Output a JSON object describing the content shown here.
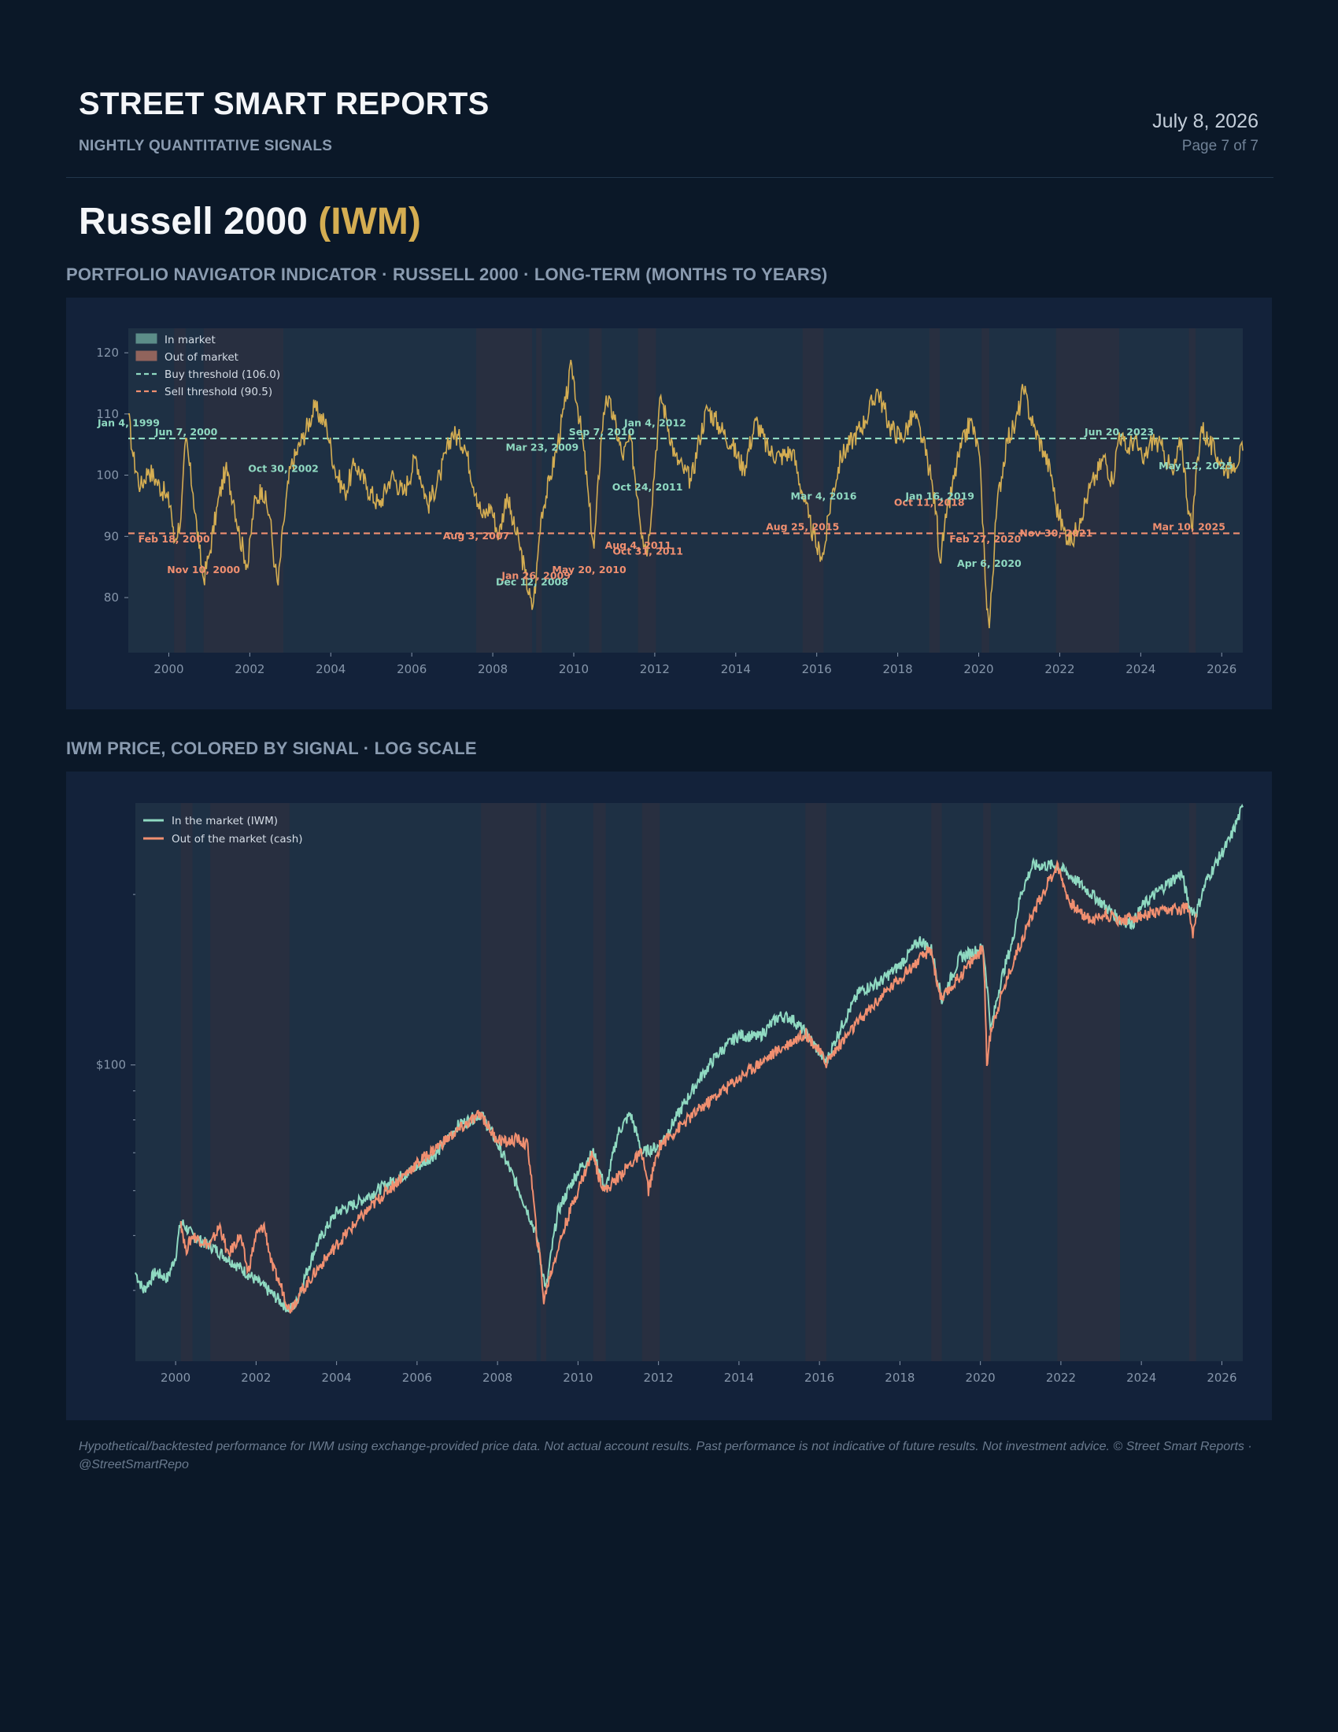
{
  "header": {
    "brand": "STREET SMART REPORTS",
    "tagline": "NIGHTLY QUANTITATIVE SIGNALS",
    "date": "July 8, 2026",
    "page": "Page 7 of 7"
  },
  "title": {
    "name": "Russell 2000 ",
    "ticker": "(IWM)"
  },
  "sections": {
    "indicator": "PORTFOLIO NAVIGATOR INDICATOR · RUSSELL 2000 · LONG-TERM (MONTHS TO YEARS)",
    "price": "IWM PRICE, COLORED BY SIGNAL · LOG SCALE"
  },
  "colors": {
    "in_market": "#8fd9c1",
    "out_market": "#f08f70",
    "indicator_line": "#d4ad52",
    "buy_threshold": "#8fd9c1",
    "sell_threshold": "#f08f70",
    "background": "#0b1828",
    "panel": "#13223a",
    "plot": "#1e3044"
  },
  "chart_data": [
    {
      "type": "line",
      "title": "",
      "xlabel": "",
      "ylabel": "",
      "xlim": [
        1999.0,
        2026.52
      ],
      "ylim": [
        71,
        124
      ],
      "x_ticks": [
        2000,
        2002,
        2004,
        2006,
        2008,
        2010,
        2012,
        2014,
        2016,
        2018,
        2020,
        2022,
        2024,
        2026
      ],
      "y_ticks": [
        80,
        90,
        100,
        110,
        120
      ],
      "legend_position": "top-left",
      "legend": [
        "In market",
        "Out of market",
        "Buy threshold (106.0)",
        "Sell threshold (90.5)"
      ],
      "buy_threshold": 106.0,
      "sell_threshold": 90.5,
      "out_of_market_periods": [
        [
          2000.13,
          2000.42
        ],
        [
          2000.86,
          2002.83
        ],
        [
          2007.59,
          2008.97
        ],
        [
          2009.07,
          2009.21
        ],
        [
          2010.38,
          2010.69
        ],
        [
          2011.59,
          2012.03
        ],
        [
          2015.65,
          2016.17
        ],
        [
          2018.78,
          2019.04
        ],
        [
          2020.07,
          2020.26
        ],
        [
          2021.91,
          2023.47
        ],
        [
          2025.19,
          2025.36
        ]
      ],
      "series": [
        {
          "x": [
            1999.0,
            1999.12,
            1999.3,
            1999.5,
            1999.7,
            1999.9,
            2000.05,
            2000.13,
            2000.3,
            2000.42,
            2000.6,
            2000.75,
            2000.86,
            2001.0,
            2001.2,
            2001.4,
            2001.6,
            2001.75,
            2001.95,
            2002.1,
            2002.3,
            2002.5,
            2002.62,
            2002.7,
            2002.83,
            2003.0,
            2003.3,
            2003.6,
            2003.9,
            2004.1,
            2004.35,
            2004.6,
            2004.9,
            2005.2,
            2005.5,
            2005.8,
            2006.1,
            2006.4,
            2006.7,
            2007.0,
            2007.3,
            2007.59,
            2007.75,
            2007.95,
            2008.15,
            2008.35,
            2008.5,
            2008.65,
            2008.8,
            2008.97,
            2009.07,
            2009.15,
            2009.21,
            2009.4,
            2009.6,
            2009.8,
            2009.95,
            2010.1,
            2010.25,
            2010.38,
            2010.5,
            2010.69,
            2010.8,
            2011.0,
            2011.2,
            2011.4,
            2011.59,
            2011.7,
            2011.83,
            2012.03,
            2012.15,
            2012.3,
            2012.5,
            2012.7,
            2012.9,
            2013.1,
            2013.3,
            2013.6,
            2013.9,
            2014.2,
            2014.5,
            2014.8,
            2015.1,
            2015.4,
            2015.65,
            2015.8,
            2016.0,
            2016.17,
            2016.35,
            2016.6,
            2016.9,
            2017.2,
            2017.5,
            2017.8,
            2018.1,
            2018.4,
            2018.6,
            2018.78,
            2018.95,
            2019.04,
            2019.2,
            2019.5,
            2019.8,
            2020.0,
            2020.07,
            2020.18,
            2020.26,
            2020.45,
            2020.7,
            2020.9,
            2021.1,
            2021.35,
            2021.6,
            2021.8,
            2021.91,
            2022.1,
            2022.3,
            2022.5,
            2022.7,
            2022.9,
            2023.1,
            2023.3,
            2023.47,
            2023.65,
            2023.85,
            2024.05,
            2024.3,
            2024.55,
            2024.8,
            2025.0,
            2025.19,
            2025.28,
            2025.36,
            2025.5,
            2025.7,
            2025.9,
            2026.1,
            2026.3,
            2026.52
          ],
          "y": [
            110,
            103,
            98,
            101,
            99,
            97,
            95,
            89,
            93,
            106,
            97,
            88,
            83,
            87,
            95,
            101,
            96,
            90,
            85,
            95,
            98,
            93,
            85,
            82,
            92,
            101,
            106,
            111,
            108,
            101,
            97,
            102,
            98,
            95,
            100,
            97,
            103,
            95,
            100,
            107,
            105,
            97,
            93,
            95,
            90,
            97,
            92,
            89,
            84,
            78,
            83,
            90,
            94,
            99,
            105,
            112,
            118,
            111,
            104,
            95,
            88,
            107,
            113,
            109,
            103,
            106,
            96,
            90,
            88,
            104,
            113,
            109,
            103,
            101,
            99,
            106,
            111,
            108,
            105,
            101,
            109,
            104,
            103,
            104,
            97,
            93,
            88,
            87,
            96,
            103,
            106,
            109,
            114,
            108,
            106,
            110,
            106,
            101,
            94,
            86,
            93,
            103,
            109,
            104,
            97,
            81,
            75,
            95,
            106,
            108,
            114,
            108,
            104,
            100,
            95,
            91,
            89,
            93,
            97,
            100,
            103,
            99,
            107,
            104,
            106,
            102,
            106,
            104,
            100,
            106,
            94,
            91,
            100,
            108,
            105,
            103,
            101,
            102,
            104
          ]
        }
      ],
      "annotations": [
        {
          "label": "Jan 4, 1999",
          "x": 1999.01,
          "y": 108.0,
          "signal": "buy"
        },
        {
          "label": "Jun 7, 2000",
          "x": 2000.43,
          "y": 106.5,
          "signal": "buy"
        },
        {
          "label": "Feb 18, 2000",
          "x": 2000.13,
          "y": 89.0,
          "signal": "sell"
        },
        {
          "label": "Nov 10, 2000",
          "x": 2000.86,
          "y": 84.0,
          "signal": "sell"
        },
        {
          "label": "Oct 30, 2002",
          "x": 2002.83,
          "y": 100.5,
          "signal": "buy"
        },
        {
          "label": "Aug 3, 2007",
          "x": 2007.59,
          "y": 89.5,
          "signal": "sell"
        },
        {
          "label": "Mar 23, 2009",
          "x": 2009.22,
          "y": 104.0,
          "signal": "buy"
        },
        {
          "label": "Dec 12, 2008",
          "x": 2008.97,
          "y": 82.0,
          "signal": "buy"
        },
        {
          "label": "Jan 26, 2009",
          "x": 2009.07,
          "y": 83.0,
          "signal": "sell"
        },
        {
          "label": "May 20, 2010",
          "x": 2010.38,
          "y": 84.0,
          "signal": "sell"
        },
        {
          "label": "Sep 7, 2010",
          "x": 2010.69,
          "y": 106.5,
          "signal": "buy"
        },
        {
          "label": "Aug 4, 2011",
          "x": 2011.59,
          "y": 88.0,
          "signal": "sell"
        },
        {
          "label": "Oct 24, 2011",
          "x": 2011.82,
          "y": 97.5,
          "signal": "buy"
        },
        {
          "label": "Oct 31, 2011",
          "x": 2011.83,
          "y": 87.0,
          "signal": "sell"
        },
        {
          "label": "Jan 4, 2012",
          "x": 2012.01,
          "y": 108.0,
          "signal": "buy"
        },
        {
          "label": "Aug 25, 2015",
          "x": 2015.65,
          "y": 91.0,
          "signal": "sell"
        },
        {
          "label": "Mar 4, 2016",
          "x": 2016.17,
          "y": 96.0,
          "signal": "buy"
        },
        {
          "label": "Oct 11, 2018",
          "x": 2018.78,
          "y": 95.0,
          "signal": "sell"
        },
        {
          "label": "Jan 16, 2019",
          "x": 2019.04,
          "y": 96.0,
          "signal": "buy"
        },
        {
          "label": "Feb 27, 2020",
          "x": 2020.16,
          "y": 89.0,
          "signal": "sell"
        },
        {
          "label": "Apr 6, 2020",
          "x": 2020.26,
          "y": 85.0,
          "signal": "buy"
        },
        {
          "label": "Nov 30, 2021",
          "x": 2021.91,
          "y": 90.0,
          "signal": "sell"
        },
        {
          "label": "Jun 20, 2023",
          "x": 2023.47,
          "y": 106.5,
          "signal": "buy"
        },
        {
          "label": "Mar 10, 2025",
          "x": 2025.19,
          "y": 91.0,
          "signal": "sell"
        },
        {
          "label": "May 12, 2025",
          "x": 2025.36,
          "y": 101.0,
          "signal": "buy"
        }
      ]
    },
    {
      "type": "line",
      "title": "",
      "xlabel": "",
      "ylabel": "",
      "y_scale": "log",
      "xlim": [
        1999.0,
        2026.52
      ],
      "ylim": [
        30,
        290
      ],
      "x_ticks": [
        2000,
        2002,
        2004,
        2006,
        2008,
        2010,
        2012,
        2014,
        2016,
        2018,
        2020,
        2022,
        2024,
        2026
      ],
      "y_ticks": [
        100
      ],
      "y_tick_labels": [
        "$100"
      ],
      "legend_position": "top-left",
      "series": [
        {
          "name": "In the market (IWM)",
          "x": [
            1999.0,
            1999.2,
            1999.5,
            1999.8,
            2000.0,
            2000.13,
            2000.42,
            2000.6,
            2000.86,
            2002.83,
            2003.0,
            2003.5,
            2004.0,
            2004.5,
            2005.0,
            2005.5,
            2006.0,
            2006.5,
            2007.0,
            2007.3,
            2007.59,
            2008.97,
            2009.07,
            2009.21,
            2009.5,
            2010.0,
            2010.38,
            2010.69,
            2011.0,
            2011.3,
            2011.59,
            2012.03,
            2012.5,
            2013.0,
            2013.5,
            2014.0,
            2014.5,
            2015.0,
            2015.3,
            2015.65,
            2016.17,
            2016.5,
            2017.0,
            2017.5,
            2018.0,
            2018.5,
            2018.78,
            2019.04,
            2019.5,
            2020.07,
            2020.26,
            2020.5,
            2020.8,
            2021.0,
            2021.3,
            2021.6,
            2021.91,
            2023.47,
            2023.8,
            2024.0,
            2024.5,
            2025.0,
            2025.19,
            2025.36,
            2025.6,
            2025.9,
            2026.2,
            2026.52
          ],
          "y": [
            43,
            40,
            43,
            42,
            46,
            53,
            50,
            49,
            48,
            37,
            38,
            48,
            55,
            57,
            60,
            63,
            66,
            70,
            78,
            80,
            82,
            50,
            45,
            40,
            55,
            65,
            70,
            60,
            76,
            82,
            70,
            72,
            82,
            94,
            105,
            113,
            112,
            122,
            121,
            114,
            101,
            115,
            135,
            140,
            150,
            166,
            160,
            130,
            155,
            161,
            115,
            140,
            165,
            200,
            225,
            225,
            225,
            180,
            178,
            190,
            205,
            218,
            190,
            185,
            210,
            230,
            250,
            285
          ],
          "color": "#8fd9c1"
        },
        {
          "name": "Out of the market (cash)",
          "x": [
            2000.13,
            2000.25,
            2000.42,
            2000.86,
            2001.1,
            2001.3,
            2001.6,
            2001.8,
            2002.0,
            2002.2,
            2002.4,
            2002.6,
            2002.83,
            2007.59,
            2007.9,
            2008.2,
            2008.5,
            2008.75,
            2008.97,
            2009.07,
            2009.15,
            2009.21,
            2010.38,
            2010.5,
            2010.69,
            2011.59,
            2011.75,
            2012.03,
            2015.65,
            2015.9,
            2016.17,
            2018.78,
            2018.9,
            2019.04,
            2020.07,
            2020.16,
            2020.26,
            2021.91,
            2022.2,
            2022.5,
            2022.8,
            2023.1,
            2023.47,
            2025.19,
            2025.28,
            2025.36
          ],
          "y": [
            53,
            47,
            50,
            48,
            52,
            46,
            50,
            43,
            50,
            52,
            44,
            41,
            37,
            82,
            75,
            73,
            74,
            72,
            50,
            45,
            38,
            40,
            70,
            64,
            60,
            70,
            60,
            72,
            114,
            108,
            101,
            160,
            142,
            130,
            161,
            100,
            115,
            225,
            195,
            185,
            180,
            185,
            180,
            190,
            170,
            185
          ],
          "color": "#f08f70"
        }
      ]
    }
  ]
}
